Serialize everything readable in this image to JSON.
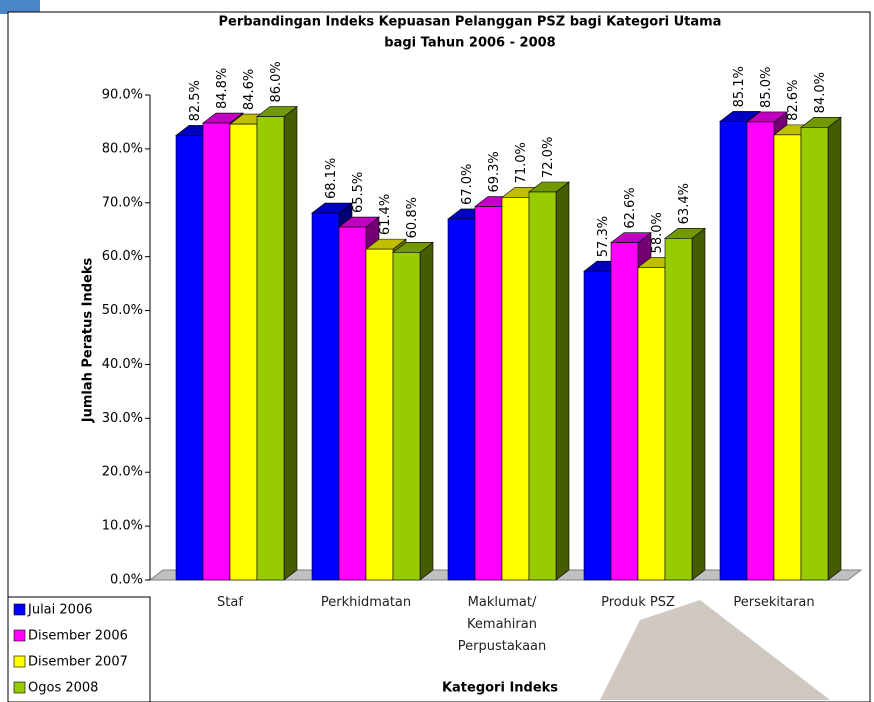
{
  "chart_data": {
    "type": "bar3d",
    "title": [
      "Perbandingan Indeks Kepuasan Pelanggan PSZ bagi Kategori Utama",
      "bagi Tahun 2006 - 2008"
    ],
    "y_label": "Jumlah Peratus Indeks",
    "x_label": "Kategori Indeks",
    "categories": [
      "Staf",
      "Perkhidmatan",
      "Maklumat/ Kemahiran Perpustakaan",
      "Produk PSZ",
      "Persekitaran"
    ],
    "series": [
      {
        "name": "Julai 2006",
        "color": "#0000ff",
        "values": [
          82.5,
          68.1,
          67.0,
          57.3,
          85.1
        ],
        "value_labels": [
          "82.5%",
          "68.1%",
          "67.0%",
          "57.3%",
          "85.1%"
        ]
      },
      {
        "name": "Disember 2006",
        "color": "#ff00ff",
        "values": [
          84.8,
          65.5,
          69.3,
          62.6,
          85.0
        ],
        "value_labels": [
          "84.8%",
          "65.5%",
          "69.3%",
          "62.6%",
          "85.0%"
        ]
      },
      {
        "name": "Disember 2007",
        "color": "#ffff00",
        "values": [
          84.6,
          61.4,
          71.0,
          58.0,
          82.6
        ],
        "value_labels": [
          "84.6%",
          "61.4%",
          "71.0%",
          "58.0%",
          "82.6%"
        ]
      },
      {
        "name": "Ogos 2008",
        "color": "#99cc00",
        "values": [
          86.0,
          60.8,
          72.0,
          63.4,
          84.0
        ],
        "value_labels": [
          "86.0%",
          "60.8%",
          "72.0%",
          "63.4%",
          "84.0%"
        ]
      }
    ],
    "ylim": [
      0,
      90
    ],
    "yticks": [
      {
        "value": 0,
        "label": "0.0%"
      },
      {
        "value": 10,
        "label": "10.0%"
      },
      {
        "value": 20,
        "label": "20.0%"
      },
      {
        "value": 30,
        "label": "30.0%"
      },
      {
        "value": 40,
        "label": "40.0%"
      },
      {
        "value": 50,
        "label": "50.0%"
      },
      {
        "value": 60,
        "label": "60.0%"
      },
      {
        "value": 70,
        "label": "70.0%"
      },
      {
        "value": 80,
        "label": "80.0%"
      },
      {
        "value": 90,
        "label": "90.0%"
      }
    ],
    "legend": "bottom-left"
  }
}
